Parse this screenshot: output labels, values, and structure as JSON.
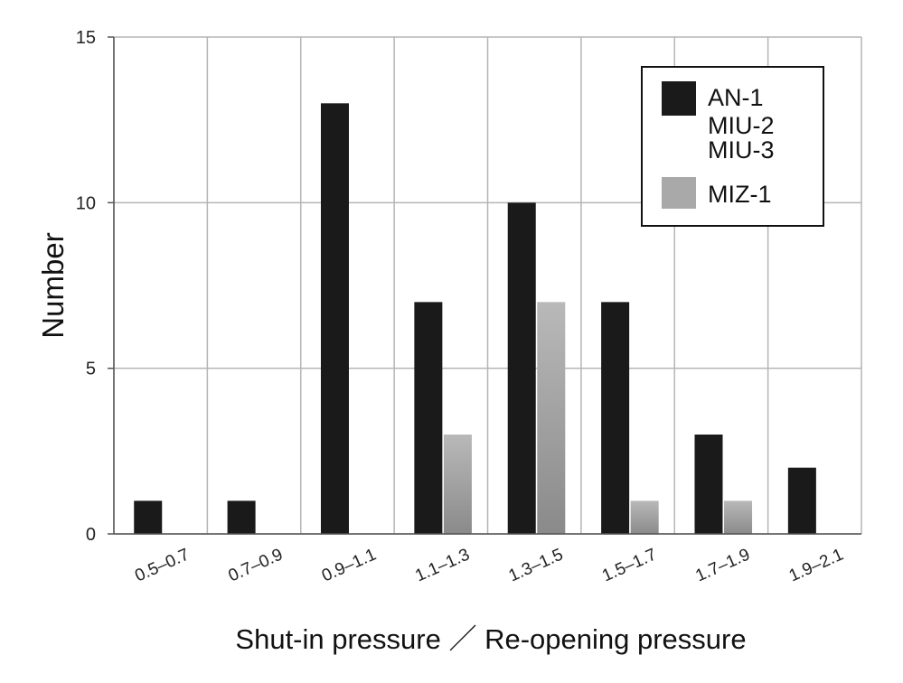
{
  "chart_data": {
    "type": "bar",
    "title": "",
    "xlabel": "Shut-in pressure ／ Re-opening pressure",
    "ylabel": "Number",
    "ylim": [
      0,
      15
    ],
    "yticks": [
      "0",
      "5",
      "10",
      "15"
    ],
    "grid": true,
    "legend_position": "top-right",
    "categories": [
      "0.5–0.7",
      "0.7–0.9",
      "0.9–1.1",
      "1.1–1.3",
      "1.3–1.5",
      "1.5–1.7",
      "1.7–1.9",
      "1.9–2.1"
    ],
    "series": [
      {
        "name": "AN-1 MIU-2 MIU-3",
        "legend_lines": [
          "AN-1",
          "MIU-2",
          "MIU-3"
        ],
        "color": "#1a1a1a",
        "values": [
          1,
          1,
          13,
          7,
          10,
          7,
          3,
          2
        ]
      },
      {
        "name": "MIZ-1",
        "legend_lines": [
          "MIZ-1"
        ],
        "color": "#a9a9a9",
        "values": [
          0,
          0,
          0,
          3,
          7,
          1,
          1,
          0
        ]
      }
    ]
  }
}
